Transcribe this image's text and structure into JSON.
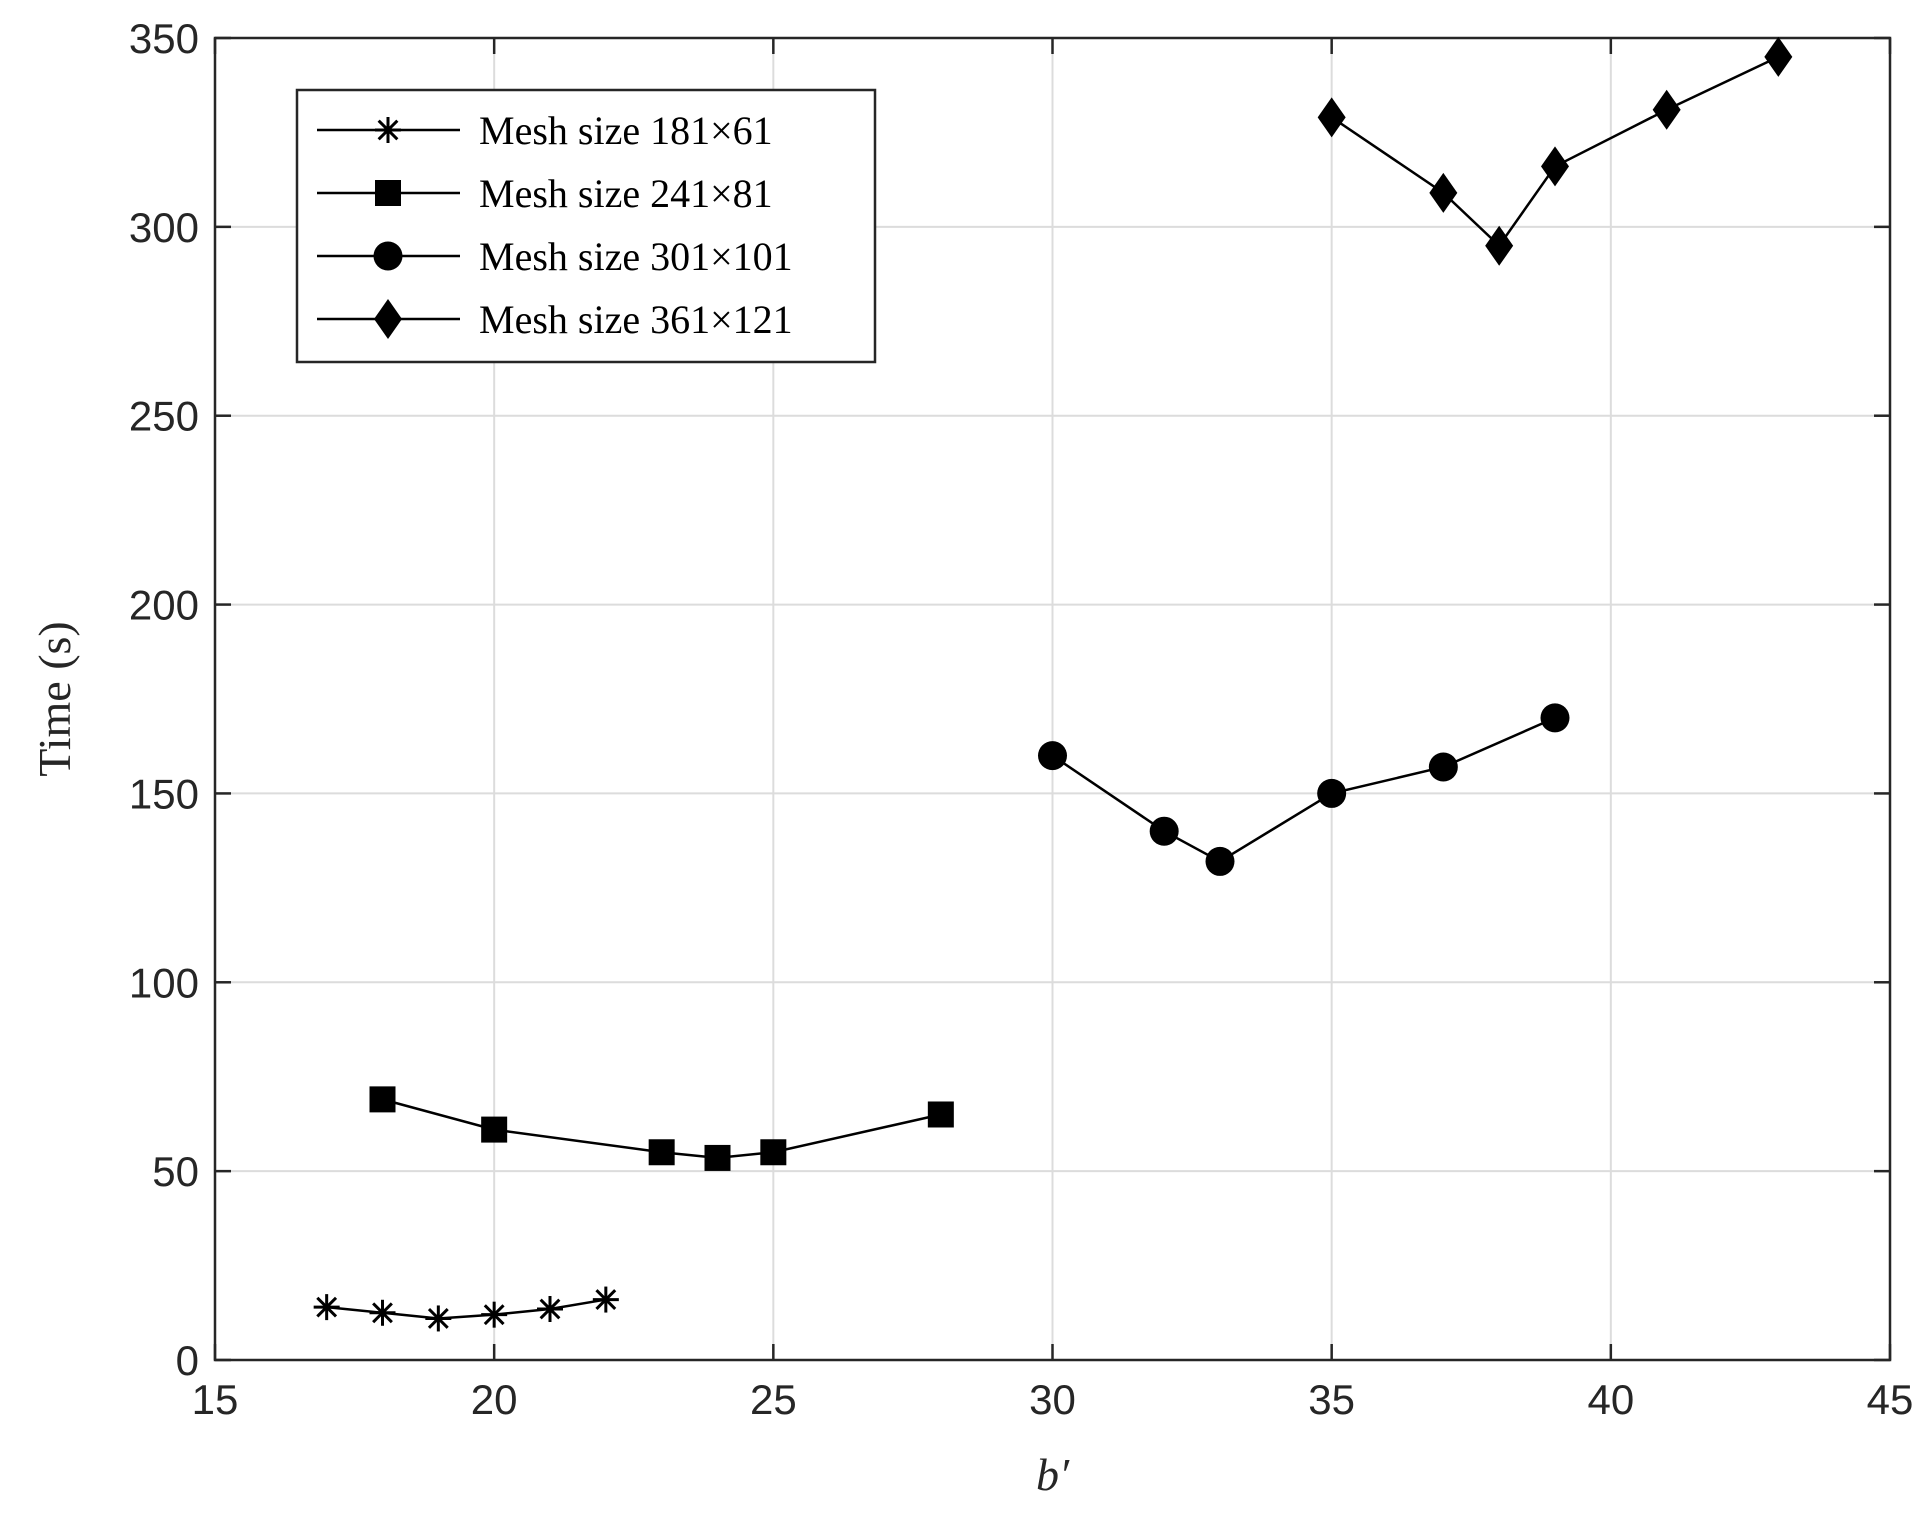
{
  "chart_data": {
    "type": "line",
    "xlabel": "b′",
    "ylabel": "Time (s)",
    "xlim": [
      15,
      45
    ],
    "ylim": [
      0,
      350
    ],
    "xticks": [
      15,
      20,
      25,
      30,
      35,
      40,
      45
    ],
    "yticks": [
      0,
      50,
      100,
      150,
      200,
      250,
      300,
      350
    ],
    "grid": true,
    "legend_position": "top-left",
    "series": [
      {
        "name": "Mesh size 181×61",
        "marker": "asterisk",
        "x": [
          17,
          18,
          19,
          20,
          21,
          22
        ],
        "y": [
          14,
          12.5,
          11,
          12,
          13.5,
          16
        ]
      },
      {
        "name": "Mesh size 241×81",
        "marker": "square",
        "x": [
          18,
          20,
          23,
          24,
          25,
          28
        ],
        "y": [
          69,
          61,
          55,
          53.5,
          55,
          65
        ]
      },
      {
        "name": "Mesh size 301×101",
        "marker": "circle",
        "x": [
          30,
          32,
          33,
          35,
          37,
          39
        ],
        "y": [
          160,
          140,
          132,
          150,
          157,
          170
        ]
      },
      {
        "name": "Mesh size 361×121",
        "marker": "diamond",
        "x": [
          35,
          37,
          38,
          39,
          41,
          43
        ],
        "y": [
          329,
          309,
          295,
          316,
          331,
          345
        ]
      }
    ]
  },
  "colors": {
    "line": "#000000",
    "grid": "#dcdcdc",
    "axis": "#262626"
  }
}
